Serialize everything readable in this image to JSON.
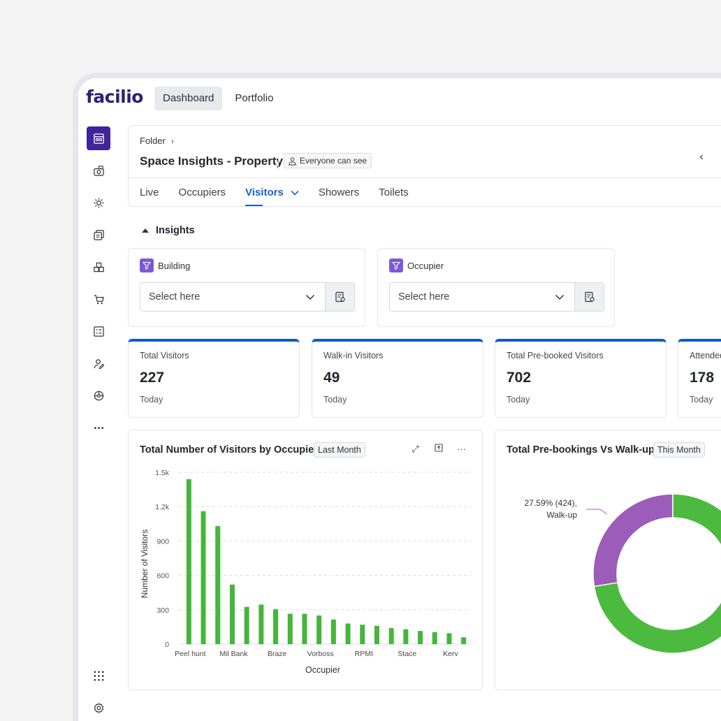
{
  "app": {
    "logo": "facilio",
    "topnav": [
      {
        "label": "Dashboard",
        "active": true
      },
      {
        "label": "Portfolio",
        "active": false
      }
    ]
  },
  "sidebar": {
    "items": [
      {
        "icon": "dashboard-icon",
        "active": true
      },
      {
        "icon": "assets-icon"
      },
      {
        "icon": "maintenance-icon"
      },
      {
        "icon": "documents-icon"
      },
      {
        "icon": "inventory-icon"
      },
      {
        "icon": "procurement-icon"
      },
      {
        "icon": "reports-icon"
      },
      {
        "icon": "people-icon"
      },
      {
        "icon": "workplace-icon"
      },
      {
        "icon": "more-icon"
      }
    ],
    "bottom": [
      {
        "icon": "apps-grid-icon"
      },
      {
        "icon": "settings-icon"
      }
    ]
  },
  "header": {
    "breadcrumb": "Folder",
    "title": "Space Insights - Property",
    "visibility": "Everyone can see",
    "tabs": [
      "Live",
      "Occupiers",
      "Visitors",
      "Showers",
      "Toilets"
    ],
    "active_tab": "Visitors"
  },
  "insights": {
    "label": "Insights",
    "filters": [
      {
        "label": "Building",
        "placeholder": "Select here"
      },
      {
        "label": "Occupier",
        "placeholder": "Select here"
      }
    ]
  },
  "kpis": [
    {
      "label": "Total Visitors",
      "value": "227",
      "period": "Today"
    },
    {
      "label": "Walk-in Visitors",
      "value": "49",
      "period": "Today"
    },
    {
      "label": "Total Pre-booked Visitors",
      "value": "702",
      "period": "Today"
    },
    {
      "label": "Attended",
      "value": "178",
      "period": "Today"
    }
  ],
  "cards": {
    "bar": {
      "title": "Total Number of Visitors by Occupier",
      "period": "Last Month"
    },
    "donut": {
      "title": "Total Pre-bookings Vs Walk-up",
      "period": "This Month"
    }
  },
  "colors": {
    "brand": "#40249a",
    "accent": "#1763c9",
    "bar": "#44b63b",
    "donut_prebook": "#4cba3e",
    "donut_walkup": "#9c5cb9"
  },
  "chart_data": [
    {
      "type": "bar",
      "xlabel": "Occupier",
      "ylabel": "Number of Visitors",
      "ylim": [
        0,
        1500
      ],
      "yticks": [
        0,
        300,
        600,
        900,
        "1.2k",
        "1.5k"
      ],
      "tick_labels": [
        "Peel hunt",
        "Mil Bank",
        "Braze",
        "Vorboss",
        "RPMI",
        "Stace",
        "Kerv"
      ],
      "values": [
        1440,
        1160,
        1030,
        520,
        325,
        345,
        305,
        265,
        265,
        250,
        215,
        180,
        170,
        160,
        140,
        130,
        115,
        105,
        95,
        60
      ],
      "grid": true
    },
    {
      "type": "pie",
      "labels": [
        "Walk-up",
        "Pre-bookings"
      ],
      "values": [
        424,
        1113
      ],
      "annotation_line1": "27.59% (424),",
      "annotation_line2": "Walk-up"
    }
  ]
}
